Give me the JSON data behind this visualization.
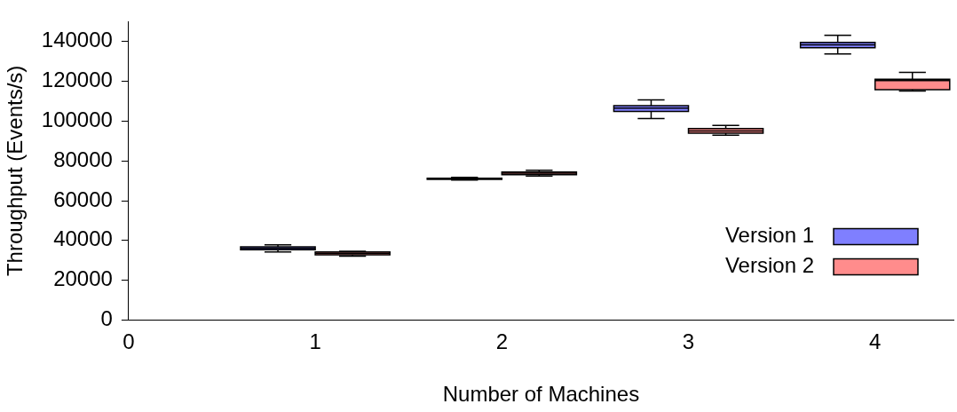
{
  "chart_data": {
    "type": "box",
    "xlabel": "Number of Machines",
    "ylabel": "Throughput (Events/s)",
    "x": [
      1,
      2,
      3,
      4
    ],
    "xlim": [
      0,
      4.42
    ],
    "xticks": [
      0,
      1,
      2,
      3,
      4
    ],
    "ylim": [
      0,
      150000
    ],
    "yticks": [
      0,
      20000,
      40000,
      60000,
      80000,
      100000,
      120000,
      140000
    ],
    "grid": false,
    "legend": "bottom right",
    "series": [
      {
        "name": "Version 1",
        "color": "#7f7fff",
        "boxes": [
          {
            "low": 34200,
            "q1": 35300,
            "median": 36000,
            "q3": 36800,
            "high": 37800
          },
          {
            "low": 70400,
            "q1": 70700,
            "median": 71000,
            "q3": 71300,
            "high": 71700
          },
          {
            "low": 101300,
            "q1": 104900,
            "median": 106500,
            "q3": 107800,
            "high": 110700
          },
          {
            "low": 133800,
            "q1": 136900,
            "median": 138300,
            "q3": 139600,
            "high": 143100
          }
        ]
      },
      {
        "name": "Version 2",
        "color": "#ff8c8c",
        "boxes": [
          {
            "low": 32100,
            "q1": 32800,
            "median": 33500,
            "q3": 34200,
            "high": 34600
          },
          {
            "low": 72400,
            "q1": 73100,
            "median": 73800,
            "q3": 74400,
            "high": 75300
          },
          {
            "low": 92900,
            "q1": 93900,
            "median": 95000,
            "q3": 96300,
            "high": 97800
          },
          {
            "low": 115100,
            "q1": 115800,
            "median": 120400,
            "q3": 121000,
            "high": 124500
          }
        ]
      }
    ]
  }
}
